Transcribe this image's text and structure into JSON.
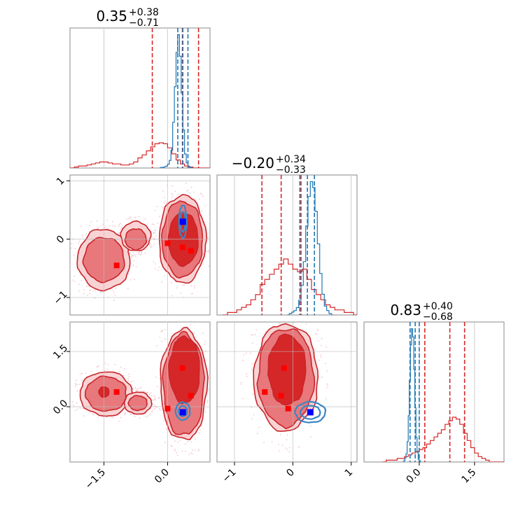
{
  "chart_data": {
    "type": "corner",
    "titles": [
      {
        "value": "0.35",
        "plus": "+0.38",
        "minus": "−0.71"
      },
      {
        "value": "−0.20",
        "plus": "+0.34",
        "minus": "−0.33"
      },
      {
        "value": "0.83",
        "plus": "+0.40",
        "minus": "−0.68"
      }
    ],
    "param_ranges": [
      [
        -2.3,
        1.0
      ],
      [
        -1.3,
        1.1
      ],
      [
        -1.5,
        2.3
      ]
    ],
    "grid": true,
    "series_colors": {
      "red": "#d62728",
      "blue": "#1f77b4",
      "light_red": "#f4a6a8",
      "mid_red": "#e8787b"
    },
    "x_ticks": [
      {
        "param": 0,
        "values": [
          -1.5,
          0.0
        ],
        "labels": [
          "−1.5",
          "0.0"
        ]
      },
      {
        "param": 1,
        "values": [
          -1,
          0,
          1
        ],
        "labels": [
          "−1",
          "0",
          "1"
        ]
      },
      {
        "param": 2,
        "values": [
          0.0,
          1.5
        ],
        "labels": [
          "0.0",
          "1.5"
        ]
      }
    ],
    "y_ticks": [
      {
        "param": 1,
        "values": [
          -1,
          0,
          1
        ],
        "labels": [
          "−1",
          "0",
          "1"
        ]
      },
      {
        "param": 2,
        "values": [
          0.0,
          1.5
        ],
        "labels": [
          "0.0",
          "1.5"
        ]
      }
    ],
    "diagonal": [
      {
        "param": 0,
        "red_quantiles": [
          -0.36,
          0.35,
          0.73
        ],
        "blue_quantiles": [
          0.24,
          0.36,
          0.48
        ],
        "red_hist": {
          "start": -2.3,
          "step": 0.1,
          "values": [
            0,
            1,
            2,
            2,
            3,
            4,
            5,
            6,
            6,
            5,
            4,
            4,
            3,
            3,
            4,
            6,
            10,
            13,
            17,
            21,
            24,
            25,
            24,
            20,
            14,
            8,
            4,
            2,
            1,
            0,
            0,
            0,
            0
          ]
        },
        "blue_hist": {
          "start": -0.2,
          "step": 0.04,
          "values": [
            0,
            1,
            1,
            2,
            3,
            6,
            12,
            28,
            72,
            128,
            182,
            210,
            176,
            118,
            60,
            22,
            8,
            3,
            1,
            0
          ]
        }
      },
      {
        "param": 1,
        "red_quantiles": [
          -0.53,
          -0.2,
          0.14
        ],
        "blue_quantiles": [
          0.12,
          0.25,
          0.37
        ],
        "red_hist": {
          "start": -1.2,
          "step": 0.08,
          "values": [
            0,
            1,
            1,
            2,
            3,
            4,
            6,
            8,
            12,
            14,
            16,
            18,
            20,
            22,
            20,
            18,
            17,
            18,
            14,
            10,
            8,
            6,
            4,
            3,
            2,
            2,
            1,
            1,
            0,
            0
          ]
        },
        "blue_hist": {
          "start": -0.1,
          "step": 0.04,
          "values": [
            0,
            1,
            2,
            3,
            5,
            10,
            20,
            36,
            60,
            80,
            90,
            86,
            70,
            48,
            28,
            14,
            6,
            3,
            1,
            0
          ]
        }
      },
      {
        "param": 2,
        "red_quantiles": [
          0.15,
          0.83,
          1.23
        ],
        "blue_quantiles": [
          -0.25,
          -0.11,
          0.0
        ],
        "red_hist": {
          "start": -1.0,
          "step": 0.1,
          "values": [
            0,
            1,
            1,
            1,
            2,
            2,
            3,
            4,
            5,
            6,
            7,
            8,
            10,
            12,
            14,
            16,
            18,
            21,
            23,
            25,
            24,
            21,
            16,
            12,
            8,
            5,
            3,
            2,
            1,
            0,
            0,
            0,
            0,
            0
          ]
        },
        "blue_hist": {
          "start": -0.45,
          "step": 0.03,
          "values": [
            0,
            1,
            3,
            6,
            15,
            34,
            60,
            86,
            98,
            92,
            68,
            40,
            18,
            7,
            2,
            1,
            0
          ]
        }
      }
    ],
    "off_diagonal": [
      {
        "x_param": 0,
        "y_param": 1,
        "red_regions": [
          {
            "level": "outer",
            "cx": -1.5,
            "cy": -0.35,
            "rx": 0.62,
            "ry": 0.52
          },
          {
            "level": "outer",
            "cx": -0.75,
            "cy": 0.05,
            "rx": 0.35,
            "ry": 0.25
          },
          {
            "level": "outer",
            "cx": 0.35,
            "cy": 0.0,
            "rx": 0.55,
            "ry": 0.75
          },
          {
            "level": "mid",
            "cx": -1.5,
            "cy": -0.35,
            "rx": 0.48,
            "ry": 0.38
          },
          {
            "level": "mid",
            "cx": -0.75,
            "cy": 0.0,
            "rx": 0.25,
            "ry": 0.18
          },
          {
            "level": "mid",
            "cx": 0.35,
            "cy": 0.0,
            "rx": 0.48,
            "ry": 0.65
          },
          {
            "level": "inner",
            "cx": 0.37,
            "cy": 0.0,
            "rx": 0.35,
            "ry": 0.45
          }
        ],
        "blue_regions": [
          {
            "cx": 0.36,
            "cy": 0.3,
            "rx": 0.09,
            "ry": 0.28
          },
          {
            "cx": 0.36,
            "cy": 0.3,
            "rx": 0.06,
            "ry": 0.17
          }
        ],
        "red_markers": [
          [
            -1.2,
            -0.45
          ],
          [
            0.0,
            -0.07
          ],
          [
            0.35,
            -0.14
          ],
          [
            0.55,
            -0.2
          ]
        ],
        "blue_marker": [
          0.36,
          0.3
        ]
      },
      {
        "x_param": 0,
        "y_param": 2,
        "red_regions": [
          {
            "level": "outer",
            "cx": -1.45,
            "cy": 0.35,
            "rx": 0.62,
            "ry": 0.6
          },
          {
            "level": "outer",
            "cx": -0.7,
            "cy": 0.1,
            "rx": 0.32,
            "ry": 0.3
          },
          {
            "level": "outer",
            "cx": 0.38,
            "cy": 0.6,
            "rx": 0.55,
            "ry": 1.5
          },
          {
            "level": "mid",
            "cx": -1.45,
            "cy": 0.35,
            "rx": 0.48,
            "ry": 0.47
          },
          {
            "level": "mid",
            "cx": -0.7,
            "cy": 0.1,
            "rx": 0.22,
            "ry": 0.2
          },
          {
            "level": "mid",
            "cx": 0.38,
            "cy": 0.6,
            "rx": 0.48,
            "ry": 1.38
          },
          {
            "level": "inner",
            "cx": 0.4,
            "cy": 1.0,
            "rx": 0.36,
            "ry": 0.9
          },
          {
            "level": "inner",
            "cx": -1.5,
            "cy": 0.4,
            "rx": 0.12,
            "ry": 0.14
          }
        ],
        "blue_regions": [
          {
            "cx": 0.36,
            "cy": -0.12,
            "rx": 0.17,
            "ry": 0.24
          },
          {
            "cx": 0.36,
            "cy": -0.12,
            "rx": 0.1,
            "ry": 0.14
          }
        ],
        "red_markers": [
          [
            -1.2,
            0.4
          ],
          [
            0.0,
            -0.05
          ],
          [
            0.35,
            1.05
          ],
          [
            0.55,
            0.3
          ]
        ],
        "blue_marker": [
          0.36,
          -0.15
        ]
      },
      {
        "x_param": 1,
        "y_param": 2,
        "red_regions": [
          {
            "level": "outer",
            "cx": -0.12,
            "cy": 0.8,
            "rx": 0.55,
            "ry": 1.45
          },
          {
            "level": "mid",
            "cx": -0.12,
            "cy": 0.8,
            "rx": 0.48,
            "ry": 1.32
          },
          {
            "level": "inner",
            "cx": -0.1,
            "cy": 1.0,
            "rx": 0.32,
            "ry": 0.95
          }
        ],
        "blue_regions": [
          {
            "cx": 0.3,
            "cy": -0.15,
            "rx": 0.26,
            "ry": 0.28
          },
          {
            "cx": 0.3,
            "cy": -0.15,
            "rx": 0.17,
            "ry": 0.18
          }
        ],
        "red_markers": [
          [
            -0.48,
            0.4
          ],
          [
            -0.2,
            0.3
          ],
          [
            -0.15,
            1.05
          ],
          [
            -0.08,
            -0.05
          ]
        ],
        "blue_marker": [
          0.3,
          -0.15
        ]
      }
    ]
  }
}
